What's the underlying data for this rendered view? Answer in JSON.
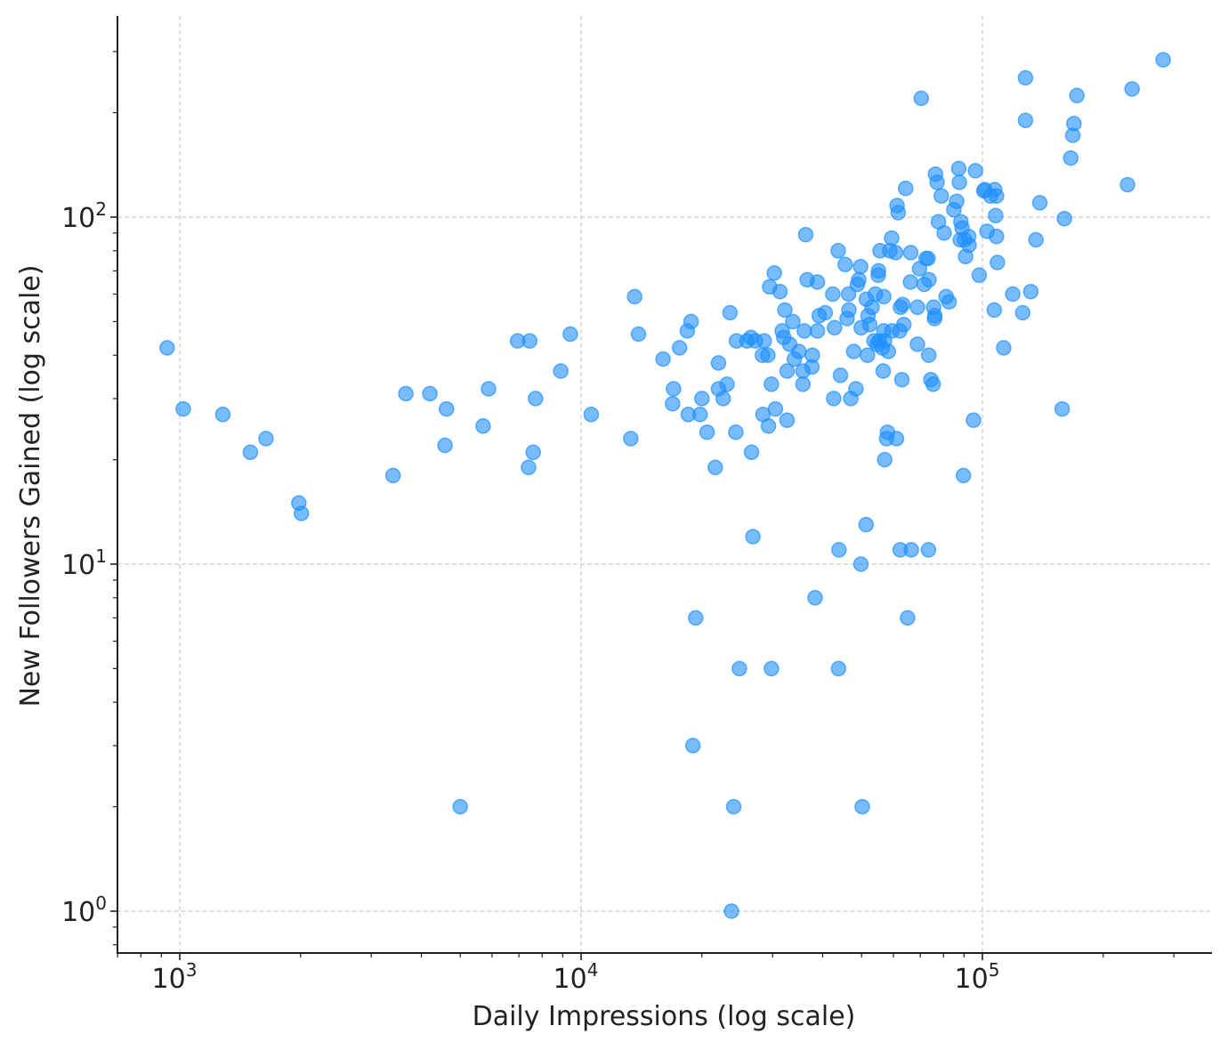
{
  "chart_data": {
    "type": "scatter",
    "title": "",
    "xlabel": "Daily Impressions (log scale)",
    "ylabel": "New Followers Gained (log scale)",
    "xscale": "log",
    "yscale": "log",
    "xlim": [
      700,
      350000
    ],
    "ylim": [
      0.8,
      330
    ],
    "grid": true,
    "legend": "none",
    "point_color": "#1E90FF",
    "x_ticks": [
      {
        "value": 1000,
        "base": "10",
        "exp": "3"
      },
      {
        "value": 10000,
        "base": "10",
        "exp": "4"
      },
      {
        "value": 100000,
        "base": "10",
        "exp": "5"
      }
    ],
    "y_ticks": [
      {
        "value": 1,
        "base": "10",
        "exp": "0"
      },
      {
        "value": 10,
        "base": "10",
        "exp": "1"
      },
      {
        "value": 100,
        "base": "10",
        "exp": "2"
      }
    ],
    "points": [
      [
        930,
        42
      ],
      [
        1020,
        28
      ],
      [
        1280,
        27
      ],
      [
        1500,
        21
      ],
      [
        1640,
        23
      ],
      [
        1980,
        15
      ],
      [
        2010,
        14
      ],
      [
        3400,
        18
      ],
      [
        3660,
        31
      ],
      [
        4200,
        31
      ],
      [
        4580,
        22
      ],
      [
        4620,
        28
      ],
      [
        5000,
        2
      ],
      [
        5700,
        25
      ],
      [
        5880,
        32
      ],
      [
        6950,
        44
      ],
      [
        7400,
        19
      ],
      [
        7450,
        44
      ],
      [
        7600,
        21
      ],
      [
        7700,
        30
      ],
      [
        8900,
        36
      ],
      [
        9400,
        46
      ],
      [
        10600,
        27
      ],
      [
        13300,
        23
      ],
      [
        13600,
        59
      ],
      [
        13900,
        46
      ],
      [
        16000,
        39
      ],
      [
        16900,
        29
      ],
      [
        17000,
        32
      ],
      [
        17600,
        42
      ],
      [
        18400,
        47
      ],
      [
        18500,
        27
      ],
      [
        18800,
        50
      ],
      [
        19300,
        7
      ],
      [
        19000,
        3
      ],
      [
        19800,
        27
      ],
      [
        20000,
        30
      ],
      [
        20600,
        24
      ],
      [
        21600,
        19
      ],
      [
        22000,
        32
      ],
      [
        22000,
        38
      ],
      [
        22600,
        30
      ],
      [
        23100,
        33
      ],
      [
        23500,
        53
      ],
      [
        23700,
        1
      ],
      [
        24000,
        2
      ],
      [
        24300,
        24
      ],
      [
        24400,
        44
      ],
      [
        24800,
        5
      ],
      [
        25900,
        44
      ],
      [
        26500,
        45
      ],
      [
        26600,
        21
      ],
      [
        26800,
        12
      ],
      [
        27200,
        44
      ],
      [
        28300,
        40
      ],
      [
        28400,
        27
      ],
      [
        28600,
        44
      ],
      [
        29200,
        40
      ],
      [
        29300,
        25
      ],
      [
        29500,
        63
      ],
      [
        29800,
        5
      ],
      [
        29800,
        33
      ],
      [
        30300,
        69
      ],
      [
        30500,
        28
      ],
      [
        31300,
        61
      ],
      [
        31700,
        47
      ],
      [
        32000,
        45
      ],
      [
        32200,
        54
      ],
      [
        32600,
        36
      ],
      [
        32600,
        26
      ],
      [
        33100,
        43
      ],
      [
        33700,
        50
      ],
      [
        34000,
        39
      ],
      [
        34900,
        41
      ],
      [
        35700,
        33
      ],
      [
        35700,
        36
      ],
      [
        36000,
        47
      ],
      [
        36300,
        89
      ],
      [
        36600,
        66
      ],
      [
        37600,
        37
      ],
      [
        37700,
        40
      ],
      [
        38300,
        8
      ],
      [
        38800,
        47
      ],
      [
        38800,
        65
      ],
      [
        39200,
        52
      ],
      [
        40600,
        53
      ],
      [
        42400,
        60
      ],
      [
        42600,
        30
      ],
      [
        42800,
        48
      ],
      [
        43700,
        80
      ],
      [
        43800,
        5
      ],
      [
        43900,
        11
      ],
      [
        44300,
        35
      ],
      [
        45500,
        73
      ],
      [
        46000,
        51
      ],
      [
        46400,
        60
      ],
      [
        46500,
        54
      ],
      [
        47000,
        30
      ],
      [
        47800,
        41
      ],
      [
        48400,
        32
      ],
      [
        48800,
        64
      ],
      [
        49200,
        66
      ],
      [
        49800,
        10
      ],
      [
        49700,
        72
      ],
      [
        49900,
        48
      ],
      [
        50200,
        2
      ],
      [
        51300,
        13
      ],
      [
        51400,
        58
      ],
      [
        51700,
        40
      ],
      [
        51900,
        52
      ],
      [
        52400,
        49
      ],
      [
        53100,
        55
      ],
      [
        53700,
        44
      ],
      [
        54100,
        60
      ],
      [
        54700,
        43
      ],
      [
        55000,
        68
      ],
      [
        55300,
        44
      ],
      [
        55100,
        70
      ],
      [
        55600,
        80
      ],
      [
        56300,
        42
      ],
      [
        56600,
        36
      ],
      [
        56800,
        47
      ],
      [
        56800,
        59
      ],
      [
        57100,
        20
      ],
      [
        57000,
        44
      ],
      [
        57700,
        23
      ],
      [
        58000,
        24
      ],
      [
        58300,
        41
      ],
      [
        58800,
        80
      ],
      [
        59400,
        87
      ],
      [
        59500,
        47
      ],
      [
        60800,
        79
      ],
      [
        61100,
        23
      ],
      [
        61300,
        108
      ],
      [
        61700,
        103
      ],
      [
        62200,
        47
      ],
      [
        62500,
        55
      ],
      [
        62400,
        11
      ],
      [
        63000,
        34
      ],
      [
        63300,
        56
      ],
      [
        63700,
        49
      ],
      [
        64400,
        121
      ],
      [
        65100,
        7
      ],
      [
        66200,
        65
      ],
      [
        66300,
        79
      ],
      [
        66500,
        11
      ],
      [
        68900,
        43
      ],
      [
        68900,
        55
      ],
      [
        69700,
        71
      ],
      [
        70400,
        220
      ],
      [
        71600,
        64
      ],
      [
        72400,
        76
      ],
      [
        73200,
        76
      ],
      [
        73400,
        11
      ],
      [
        73500,
        40
      ],
      [
        73600,
        66
      ],
      [
        74400,
        34
      ],
      [
        75400,
        33
      ],
      [
        75600,
        55
      ],
      [
        76000,
        51
      ],
      [
        76400,
        133
      ],
      [
        76100,
        52
      ],
      [
        77100,
        126
      ],
      [
        77700,
        97
      ],
      [
        79000,
        115
      ],
      [
        80300,
        90
      ],
      [
        81200,
        59
      ],
      [
        82600,
        57
      ],
      [
        84900,
        105
      ],
      [
        86300,
        111
      ],
      [
        87300,
        138
      ],
      [
        87600,
        126
      ],
      [
        88100,
        86
      ],
      [
        88400,
        97
      ],
      [
        89000,
        93
      ],
      [
        89700,
        18
      ],
      [
        90300,
        86
      ],
      [
        90800,
        77
      ],
      [
        92400,
        88
      ],
      [
        92600,
        83
      ],
      [
        95000,
        26
      ],
      [
        96100,
        136
      ],
      [
        98200,
        68
      ],
      [
        100800,
        119
      ],
      [
        101500,
        120
      ],
      [
        102700,
        91
      ],
      [
        104800,
        115
      ],
      [
        107000,
        54
      ],
      [
        107300,
        120
      ],
      [
        107900,
        101
      ],
      [
        108400,
        115
      ],
      [
        108400,
        88
      ],
      [
        109000,
        74
      ],
      [
        113000,
        42
      ],
      [
        119000,
        60
      ],
      [
        126000,
        53
      ],
      [
        128000,
        190
      ],
      [
        128000,
        252
      ],
      [
        132000,
        61
      ],
      [
        136000,
        86
      ],
      [
        139000,
        110
      ],
      [
        158000,
        28
      ],
      [
        160000,
        99
      ],
      [
        166000,
        148
      ],
      [
        168000,
        172
      ],
      [
        169000,
        186
      ],
      [
        172000,
        224
      ],
      [
        230000,
        124
      ],
      [
        236000,
        234
      ],
      [
        282000,
        284
      ]
    ]
  }
}
